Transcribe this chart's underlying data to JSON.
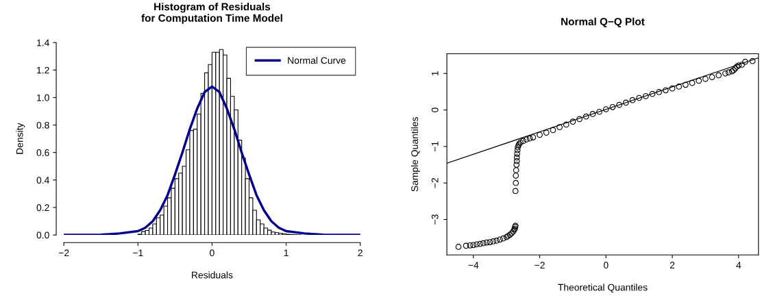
{
  "chart_data": [
    {
      "type": "histogram",
      "title": "Histogram of Residuals\nfor Computation Time Model",
      "xlabel": "Residuals",
      "ylabel": "Density",
      "color": "#ffffff",
      "legend": "top right",
      "grid": false,
      "bins": [
        -1.0,
        -0.95,
        -0.9,
        -0.85,
        -0.8,
        -0.75,
        -0.7,
        -0.65,
        -0.6,
        -0.55,
        -0.5,
        -0.45,
        -0.4,
        -0.35,
        -0.3,
        -0.25,
        -0.2,
        -0.15,
        -0.1,
        -0.05,
        0,
        0.05,
        0.1,
        0.15,
        0.2,
        0.25,
        0.3,
        0.35,
        0.4,
        0.45,
        0.5,
        0.55,
        0.6,
        0.65,
        0.7,
        0.75,
        0.8,
        0.85,
        0.9,
        0.95,
        1.0,
        1.05,
        1.1,
        1.15,
        1.2
      ],
      "values": [
        0.005,
        0.025,
        0.033,
        0.05,
        0.08,
        0.125,
        0.145,
        0.21,
        0.27,
        0.34,
        0.41,
        0.45,
        0.5,
        0.62,
        0.76,
        0.77,
        0.88,
        1.03,
        1.18,
        1.24,
        1.33,
        1.33,
        1.35,
        1.31,
        1.14,
        1.01,
        0.91,
        0.69,
        0.56,
        0.41,
        0.27,
        0.18,
        0.11,
        0.08,
        0.05,
        0.035,
        0.022,
        0.017,
        0.012,
        0.008,
        0.005,
        0.003,
        0.002,
        0.001
      ],
      "series": [
        {
          "type": "line",
          "name": "Normal Curve",
          "color": "#00008b",
          "x": [
            -2,
            -1.5,
            -1.25,
            -1.0,
            -0.9,
            -0.8,
            -0.7,
            -0.6,
            -0.5,
            -0.4,
            -0.3,
            -0.2,
            -0.1,
            0,
            0.1,
            0.2,
            0.3,
            0.4,
            0.5,
            0.6,
            0.7,
            0.8,
            0.9,
            1.0,
            1.25,
            1.5,
            2
          ],
          "values": [
            0,
            0.002,
            0.011,
            0.028,
            0.053,
            0.1,
            0.18,
            0.29,
            0.44,
            0.6,
            0.77,
            0.92,
            1.04,
            1.08,
            1.04,
            0.92,
            0.77,
            0.6,
            0.44,
            0.29,
            0.18,
            0.1,
            0.053,
            0.028,
            0.011,
            0.002,
            0
          ]
        }
      ],
      "xlim": [
        -2,
        2
      ],
      "xticks": [
        {
          "value": -2,
          "label": "−2"
        },
        {
          "value": -1,
          "label": "−1"
        },
        0,
        1,
        2
      ],
      "ylim": [
        0,
        1.4
      ],
      "yticks": [
        {
          "value": 0,
          "label": "0.0"
        },
        {
          "value": 0.2,
          "label": "0.2"
        },
        {
          "value": 0.4,
          "label": "0.4"
        },
        {
          "value": 0.6,
          "label": "0.6"
        },
        {
          "value": 0.8,
          "label": "0.8"
        },
        {
          "value": 1.0,
          "label": "1.0"
        },
        {
          "value": 1.2,
          "label": "1.2"
        },
        {
          "value": 1.4,
          "label": "1.4"
        }
      ]
    },
    {
      "type": "scatter",
      "title": "Normal Q−Q Plot",
      "xlabel": "Theoretical Quantiles",
      "ylabel": "Sample Quantiles",
      "grid": false,
      "series": [
        {
          "type": "scatter",
          "marker": "circle",
          "color": "#000000",
          "x": [
            -4.45,
            -4.22,
            -4.1,
            -4.0,
            -3.9,
            -3.8,
            -3.7,
            -3.6,
            -3.5,
            -3.4,
            -3.3,
            -3.2,
            -3.1,
            -3.0,
            -2.95,
            -2.9,
            -2.85,
            -2.8,
            -2.77,
            -2.75,
            -2.74,
            -2.73,
            -2.73,
            -2.72,
            -2.72,
            -2.71,
            -2.7,
            -2.69,
            -2.69,
            -2.68,
            -2.67,
            -2.66,
            -2.64,
            -2.62,
            -2.58,
            -2.5,
            -2.4,
            -2.3,
            -2.2,
            -2.0,
            -1.8,
            -1.6,
            -1.4,
            -1.2,
            -1.0,
            -0.8,
            -0.6,
            -0.4,
            -0.2,
            0,
            0.2,
            0.4,
            0.6,
            0.8,
            1.0,
            1.2,
            1.4,
            1.6,
            1.8,
            2.0,
            2.2,
            2.4,
            2.6,
            2.8,
            3.0,
            3.2,
            3.4,
            3.6,
            3.7,
            3.8,
            3.85,
            3.9,
            3.95,
            4.0,
            4.1,
            4.2,
            4.42
          ],
          "values": [
            -3.75,
            -3.72,
            -3.71,
            -3.7,
            -3.68,
            -3.67,
            -3.65,
            -3.63,
            -3.62,
            -3.6,
            -3.58,
            -3.55,
            -3.52,
            -3.48,
            -3.45,
            -3.42,
            -3.38,
            -3.33,
            -3.28,
            -3.25,
            -3.2,
            -3.17,
            -2.22,
            -2.0,
            -1.8,
            -1.65,
            -1.5,
            -1.4,
            -1.3,
            -1.2,
            -1.1,
            -1.02,
            -0.97,
            -0.93,
            -0.89,
            -0.85,
            -0.81,
            -0.78,
            -0.75,
            -0.68,
            -0.62,
            -0.55,
            -0.47,
            -0.4,
            -0.32,
            -0.25,
            -0.18,
            -0.11,
            -0.05,
            0.02,
            0.08,
            0.14,
            0.2,
            0.27,
            0.33,
            0.38,
            0.44,
            0.49,
            0.54,
            0.59,
            0.64,
            0.69,
            0.74,
            0.8,
            0.85,
            0.9,
            0.95,
            1.0,
            1.03,
            1.06,
            1.09,
            1.14,
            1.19,
            1.22,
            1.24,
            1.32,
            1.34
          ]
        },
        {
          "type": "line",
          "color": "#000000",
          "x": [
            -4.8,
            4.6
          ],
          "values": [
            -1.46,
            1.43
          ]
        }
      ],
      "xlim": [
        -4.8,
        4.6
      ],
      "xticks": [
        {
          "value": -4,
          "label": "−4"
        },
        {
          "value": -2,
          "label": "−2"
        },
        0,
        2,
        4
      ],
      "ylim": [
        -3.97,
        1.54
      ],
      "yticks": [
        {
          "value": -3,
          "label": "−3"
        },
        {
          "value": -2,
          "label": "−2"
        },
        {
          "value": -1,
          "label": "−1"
        },
        0,
        1
      ]
    }
  ]
}
